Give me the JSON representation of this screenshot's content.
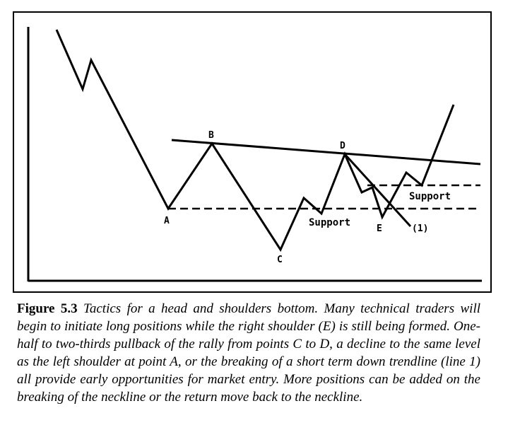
{
  "diagram": {
    "point_labels": {
      "a": "A",
      "b": "B",
      "c": "C",
      "d": "D",
      "e": "E"
    },
    "support_upper": "Support",
    "support_lower": "Support",
    "trendline_label": "(1)"
  },
  "caption": {
    "label": "Figure 5.3",
    "text": "Tactics for a head and shoulders bottom. Many technical traders will begin to initiate long positions while the right shoulder (E) is still being formed. One-half to two-thirds pullback of the rally from points C to D, a decline to the same level as the left shoulder at point A, or the breaking of a short term down trendline (line 1) all provide early opportunities for market entry. More positions can be added on the breaking of the neckline or the return move back to the neckline."
  }
}
